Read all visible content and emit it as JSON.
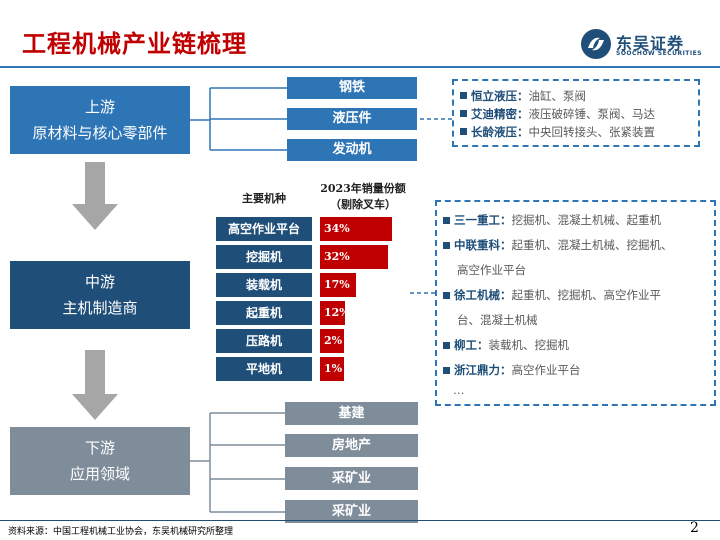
{
  "header": {
    "title": "工程机械产业链梳理",
    "logo_cn": "东吴证券",
    "logo_en": "SOOCHOW SECURITIES"
  },
  "stages": {
    "upstream": {
      "line1": "上游",
      "line2": "原材料与核心零部件"
    },
    "midstream": {
      "line1": "中游",
      "line2": "主机制造商"
    },
    "downstream": {
      "line1": "下游",
      "line2": "应用领域"
    }
  },
  "upstream_items": [
    "钢铁",
    "液压件",
    "发动机"
  ],
  "upstream_info": [
    {
      "company": "恒立液压",
      "products": "油缸、泵阀"
    },
    {
      "company": "艾迪精密",
      "products": "液压破碎锤、泵阀、马达"
    },
    {
      "company": "长龄液压",
      "products": "中央回转接头、张紧装置"
    }
  ],
  "midstream_chart": {
    "col1_header": "主要机种",
    "col2_header_line1": "2023年销量份额",
    "col2_header_line2": "（剔除叉车）"
  },
  "chart_data": {
    "type": "bar",
    "categories": [
      "高空作业平台",
      "挖掘机",
      "装载机",
      "起重机",
      "压路机",
      "平地机"
    ],
    "values": [
      34,
      32,
      17,
      12,
      2,
      1
    ],
    "labels": [
      "34%",
      "32%",
      "17%",
      "12%",
      "2%",
      "1%"
    ],
    "title": "2023年销量份额（剔除叉车）",
    "xlabel": "主要机种",
    "ylabel": "",
    "colors": {
      "bar": "#c00000",
      "category": "#1f4e79"
    }
  },
  "midstream_info": [
    {
      "company": "三一重工",
      "products": "挖掘机、混凝土机械、起重机"
    },
    {
      "company": "中联重科",
      "products": "起重机、混凝土机械、挖掘机、",
      "products2": "高空作业平台"
    },
    {
      "company": "徐工机械",
      "products": "起重机、挖掘机、高空作业平",
      "products2": "台、混凝土机械"
    },
    {
      "company": "柳工",
      "products": "装载机、挖掘机"
    },
    {
      "company": "浙江鼎力",
      "products": "高空作业平台"
    }
  ],
  "midstream_ellipsis": "…",
  "downstream_items": [
    "基建",
    "房地产",
    "采矿业",
    "采矿业"
  ],
  "footer": {
    "source": "资料来源：中国工程机械工业协会，东吴机械研究所整理",
    "page": "2"
  },
  "colors": {
    "title": "#c00000",
    "primary_blue": "#2e75b6",
    "dark_blue": "#1f4e79",
    "gray": "#7f8c9a",
    "bar_red": "#c00000"
  }
}
